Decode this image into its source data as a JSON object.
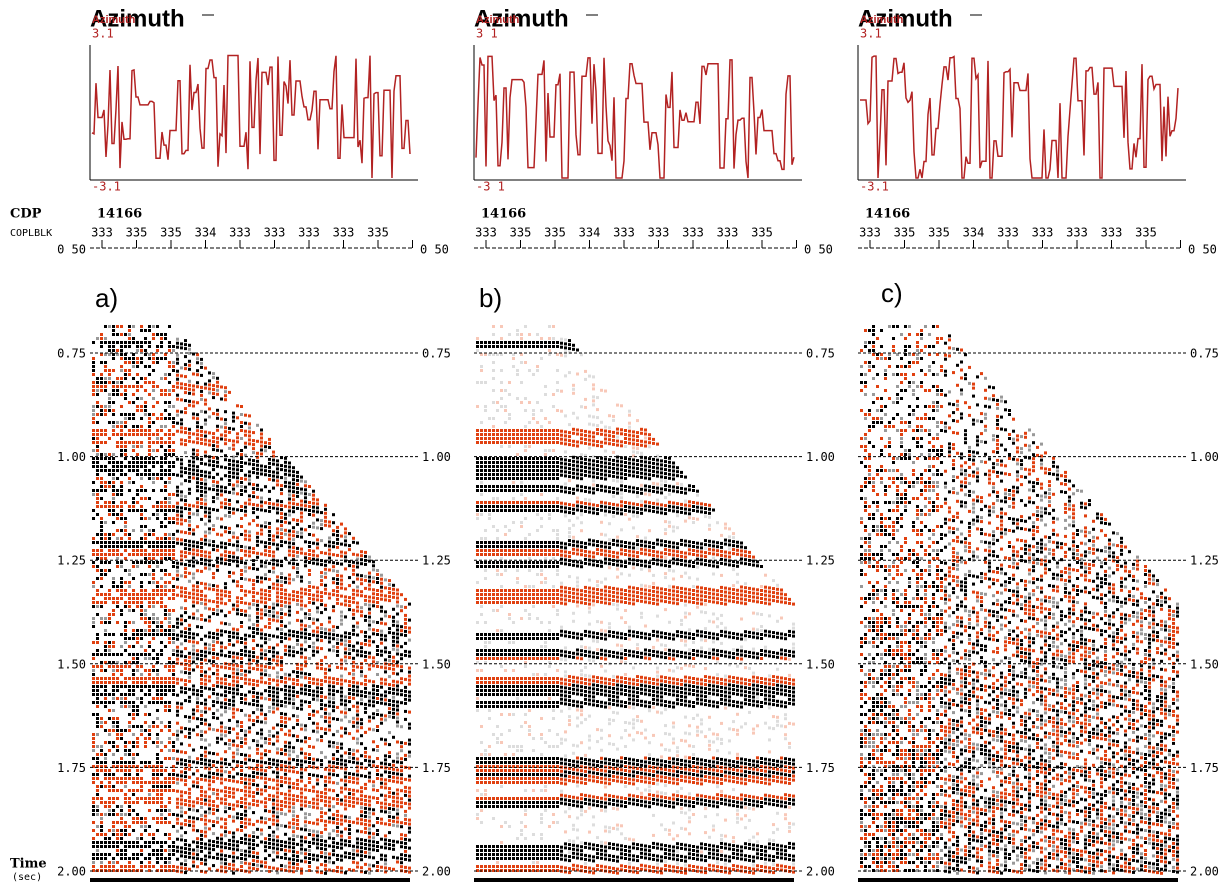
{
  "header": {
    "cdp_label": "CDP",
    "coplblk_label": "COPLBLK",
    "time_label": "Time",
    "time_unit": "(sec)"
  },
  "top_tick": "0 50",
  "times": [
    "0.75",
    "1.00",
    "1.25",
    "1.50",
    "1.75",
    "2.00"
  ],
  "panels": [
    {
      "label": "a)",
      "title": "Azimuth",
      "legend": "Azimuth",
      "az_max": "3.1",
      "az_min": "-3.1",
      "cdp": "14166",
      "coplblk": [
        "333",
        "335",
        "335",
        "334",
        "333",
        "333",
        "333",
        "333",
        "335"
      ]
    },
    {
      "label": "b)",
      "title": "Azimuth",
      "legend": "Azimuth",
      "az_max": "3 1",
      "az_min": "-3 1",
      "cdp": "14166",
      "coplblk": [
        "333",
        "335",
        "335",
        "334",
        "333",
        "333",
        "333",
        "333",
        "335"
      ]
    },
    {
      "label": "c)",
      "title": "Azimuth",
      "legend": "Azimuth",
      "az_max": "3.1",
      "az_min": "-3.1",
      "cdp": "14166",
      "coplblk": [
        "333",
        "335",
        "335",
        "334",
        "333",
        "333",
        "333",
        "333",
        "335"
      ]
    }
  ]
}
